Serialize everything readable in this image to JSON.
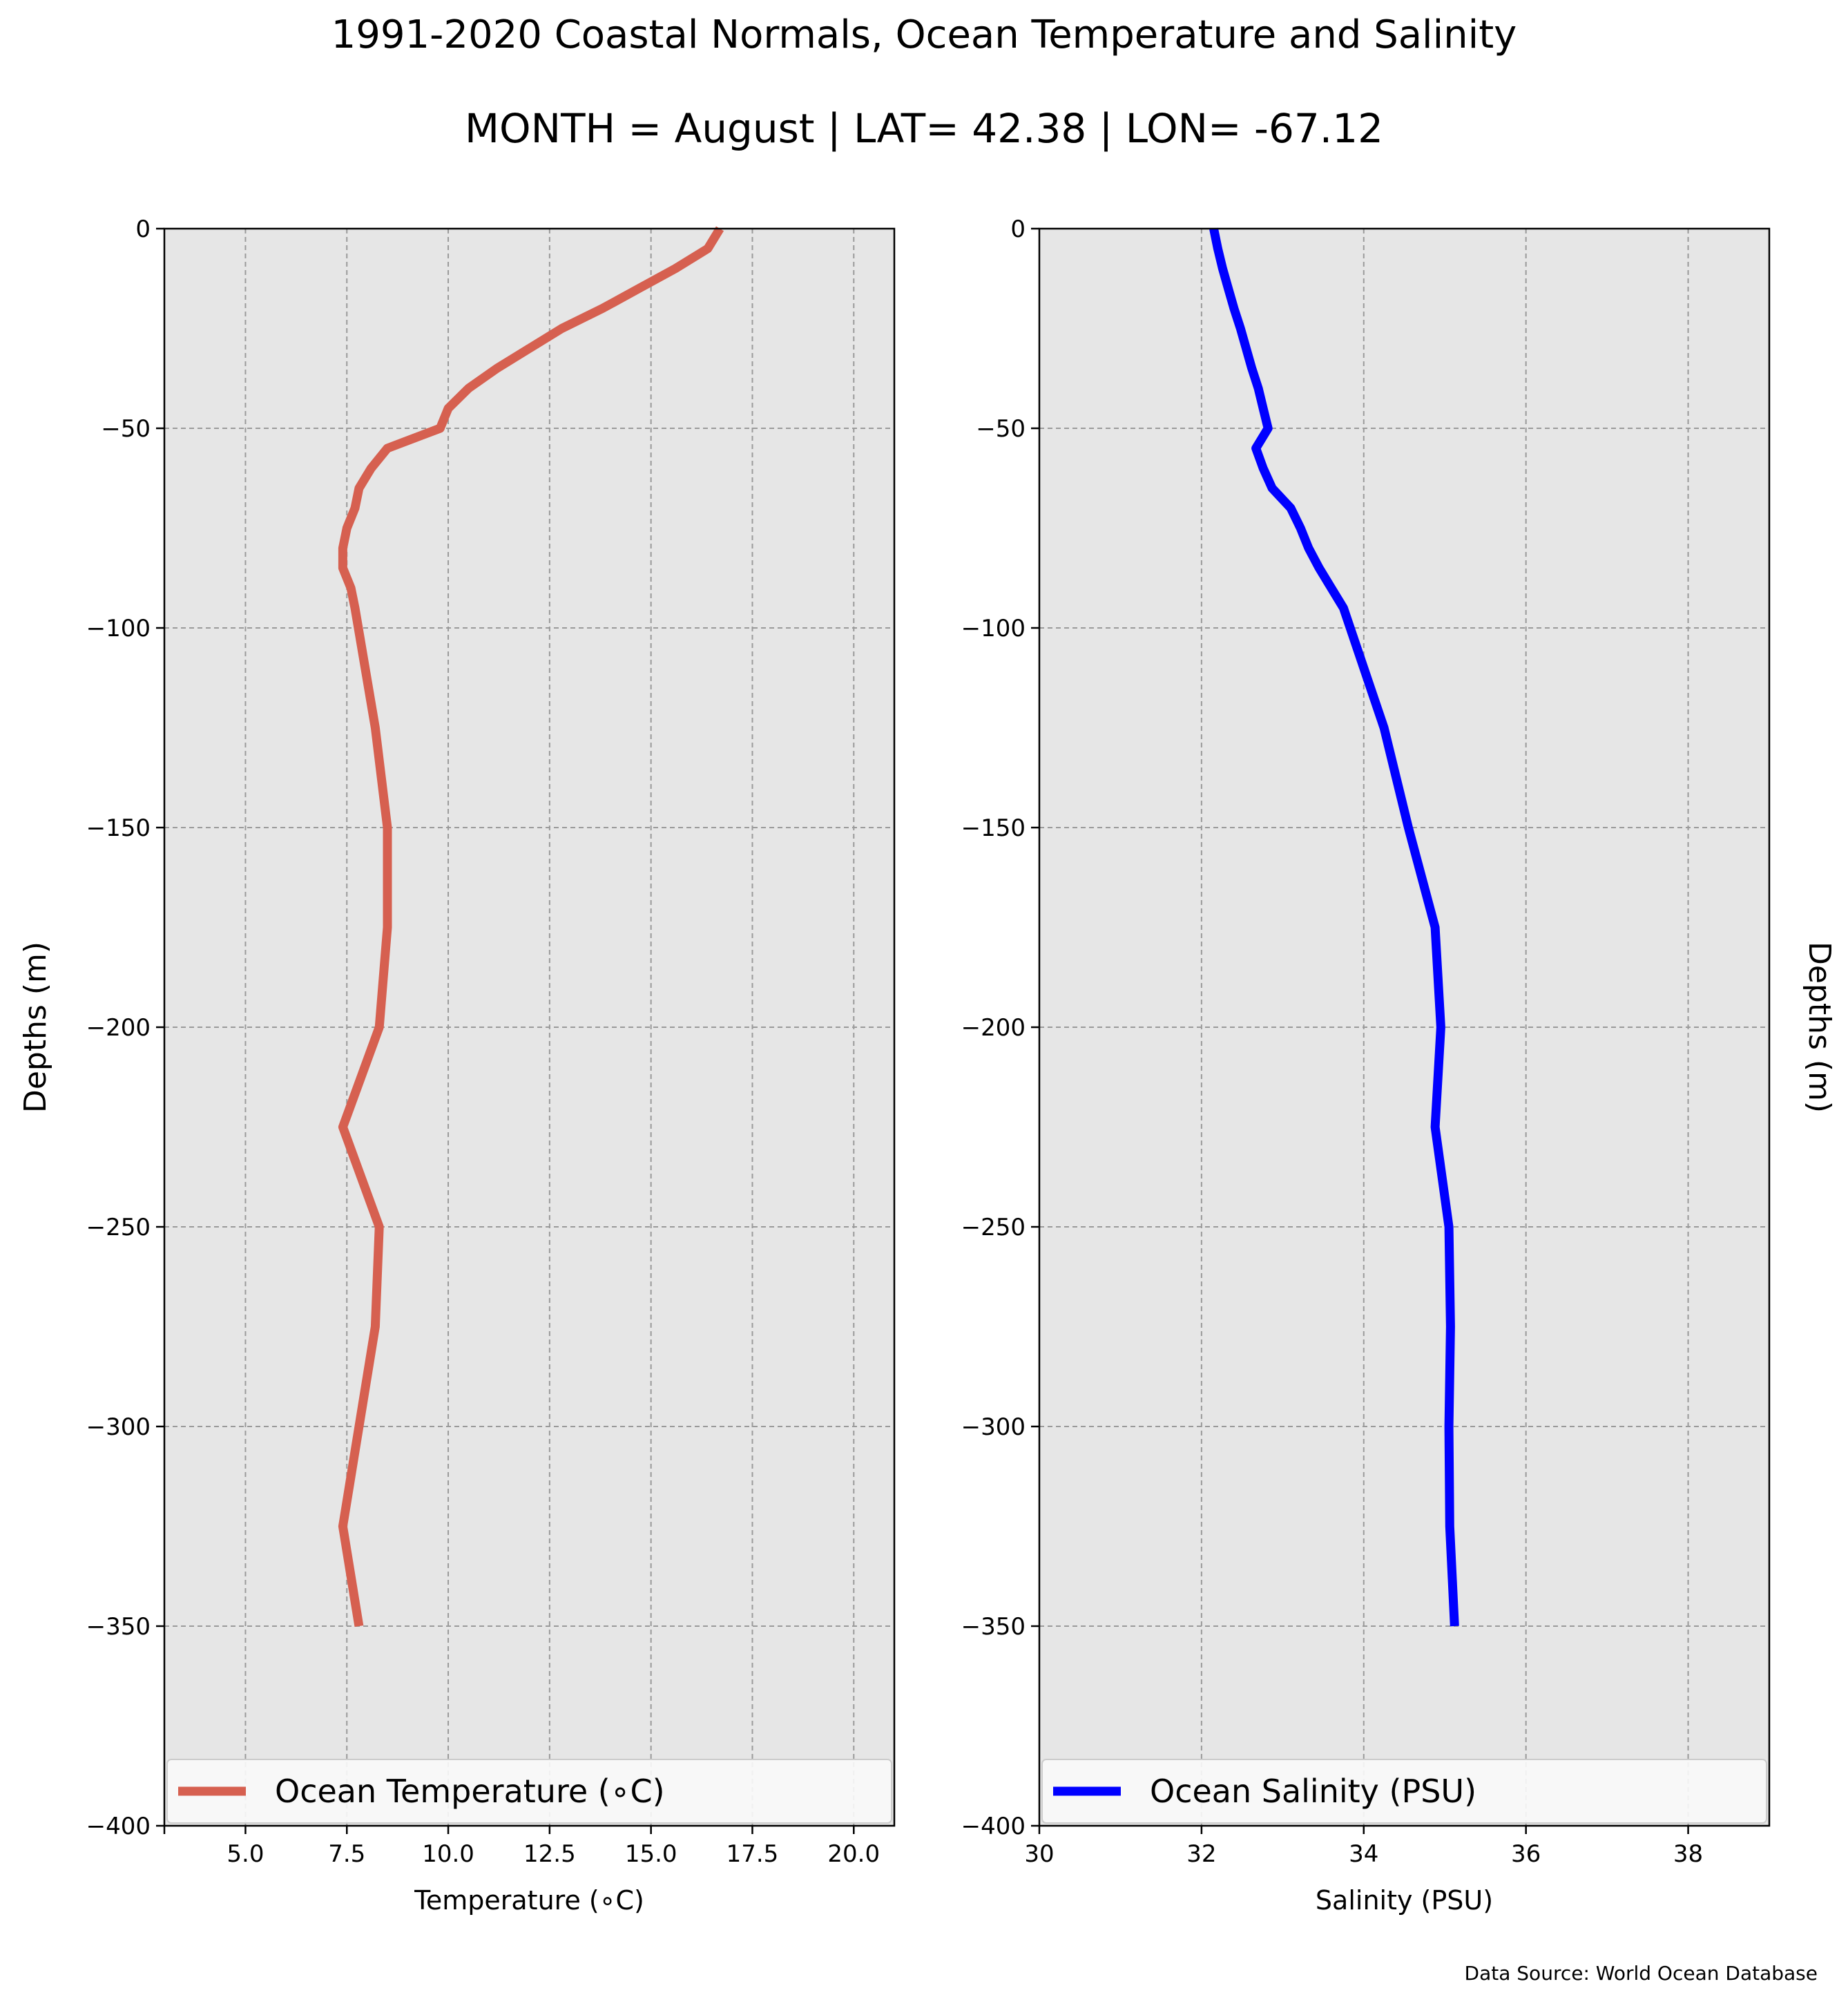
{
  "figure": {
    "title": "1991-2020 Coastal Normals, Ocean Temperature and Salinity",
    "subtitle": "MONTH = August | LAT= 42.38 | LON= -67.12",
    "source": "Data Source: World Ocean Database"
  },
  "chart_data": [
    {
      "type": "line",
      "xlabel": "Temperature ($^\\circ$C)",
      "ylabel": "Depths (m)",
      "xlim": [
        3,
        21
      ],
      "ylim": [
        -400,
        0
      ],
      "xticks": [
        5.0,
        7.5,
        10.0,
        12.5,
        15.0,
        17.5,
        20.0
      ],
      "xtick_labels": [
        "5.0",
        "7.5",
        "10.0",
        "12.5",
        "15.0",
        "17.5",
        "20.0"
      ],
      "yticks": [
        0,
        -50,
        -100,
        -150,
        -200,
        -250,
        -300,
        -350,
        -400
      ],
      "ytick_labels": [
        "0",
        "−50",
        "−100",
        "−150",
        "−200",
        "−250",
        "−300",
        "−350",
        "−400"
      ],
      "grid": true,
      "legend_position": "bottom",
      "series": [
        {
          "name": "Ocean Temperature ($^\\circ$C)",
          "color": "#d66050",
          "x": [
            16.7,
            16.4,
            15.6,
            14.7,
            13.8,
            12.8,
            12.0,
            11.2,
            10.5,
            10.0,
            9.8,
            8.5,
            8.1,
            7.8,
            7.7,
            7.5,
            7.4,
            7.4,
            7.6,
            7.7,
            8.2,
            8.5,
            8.5,
            8.3,
            7.4,
            8.3,
            8.2,
            7.8,
            7.4,
            7.8
          ],
          "y": [
            0,
            -5,
            -10,
            -15,
            -20,
            -25,
            -30,
            -35,
            -40,
            -45,
            -50,
            -55,
            -60,
            -65,
            -70,
            -75,
            -80,
            -85,
            -90,
            -95,
            -125,
            -150,
            -175,
            -200,
            -225,
            -250,
            -275,
            -300,
            -325,
            -350
          ]
        }
      ]
    },
    {
      "type": "line",
      "xlabel": "Salinity (PSU)",
      "ylabel": "Depths (m)",
      "xlim": [
        30,
        39
      ],
      "ylim": [
        -400,
        0
      ],
      "xticks": [
        30,
        32,
        34,
        36,
        38
      ],
      "xtick_labels": [
        "30",
        "32",
        "34",
        "36",
        "38"
      ],
      "yticks": [
        0,
        -50,
        -100,
        -150,
        -200,
        -250,
        -300,
        -350,
        -400
      ],
      "ytick_labels": [
        "0",
        "−50",
        "−100",
        "−150",
        "−200",
        "−250",
        "−300",
        "−350",
        "−400"
      ],
      "grid": true,
      "legend_position": "bottom",
      "series": [
        {
          "name": "Ocean Salinity (PSU)",
          "color": "#0000ff",
          "x": [
            32.15,
            32.2,
            32.26,
            32.33,
            32.4,
            32.48,
            32.55,
            32.62,
            32.7,
            32.76,
            32.82,
            32.67,
            32.76,
            32.87,
            33.1,
            33.22,
            33.32,
            33.45,
            33.6,
            33.75,
            34.25,
            34.55,
            34.88,
            34.95,
            34.88,
            35.05,
            35.07,
            35.05,
            35.06,
            35.12
          ],
          "y": [
            0,
            -5,
            -10,
            -15,
            -20,
            -25,
            -30,
            -35,
            -40,
            -45,
            -50,
            -55,
            -60,
            -65,
            -70,
            -75,
            -80,
            -85,
            -90,
            -95,
            -125,
            -150,
            -175,
            -200,
            -225,
            -250,
            -275,
            -300,
            -325,
            -350
          ]
        }
      ]
    }
  ]
}
